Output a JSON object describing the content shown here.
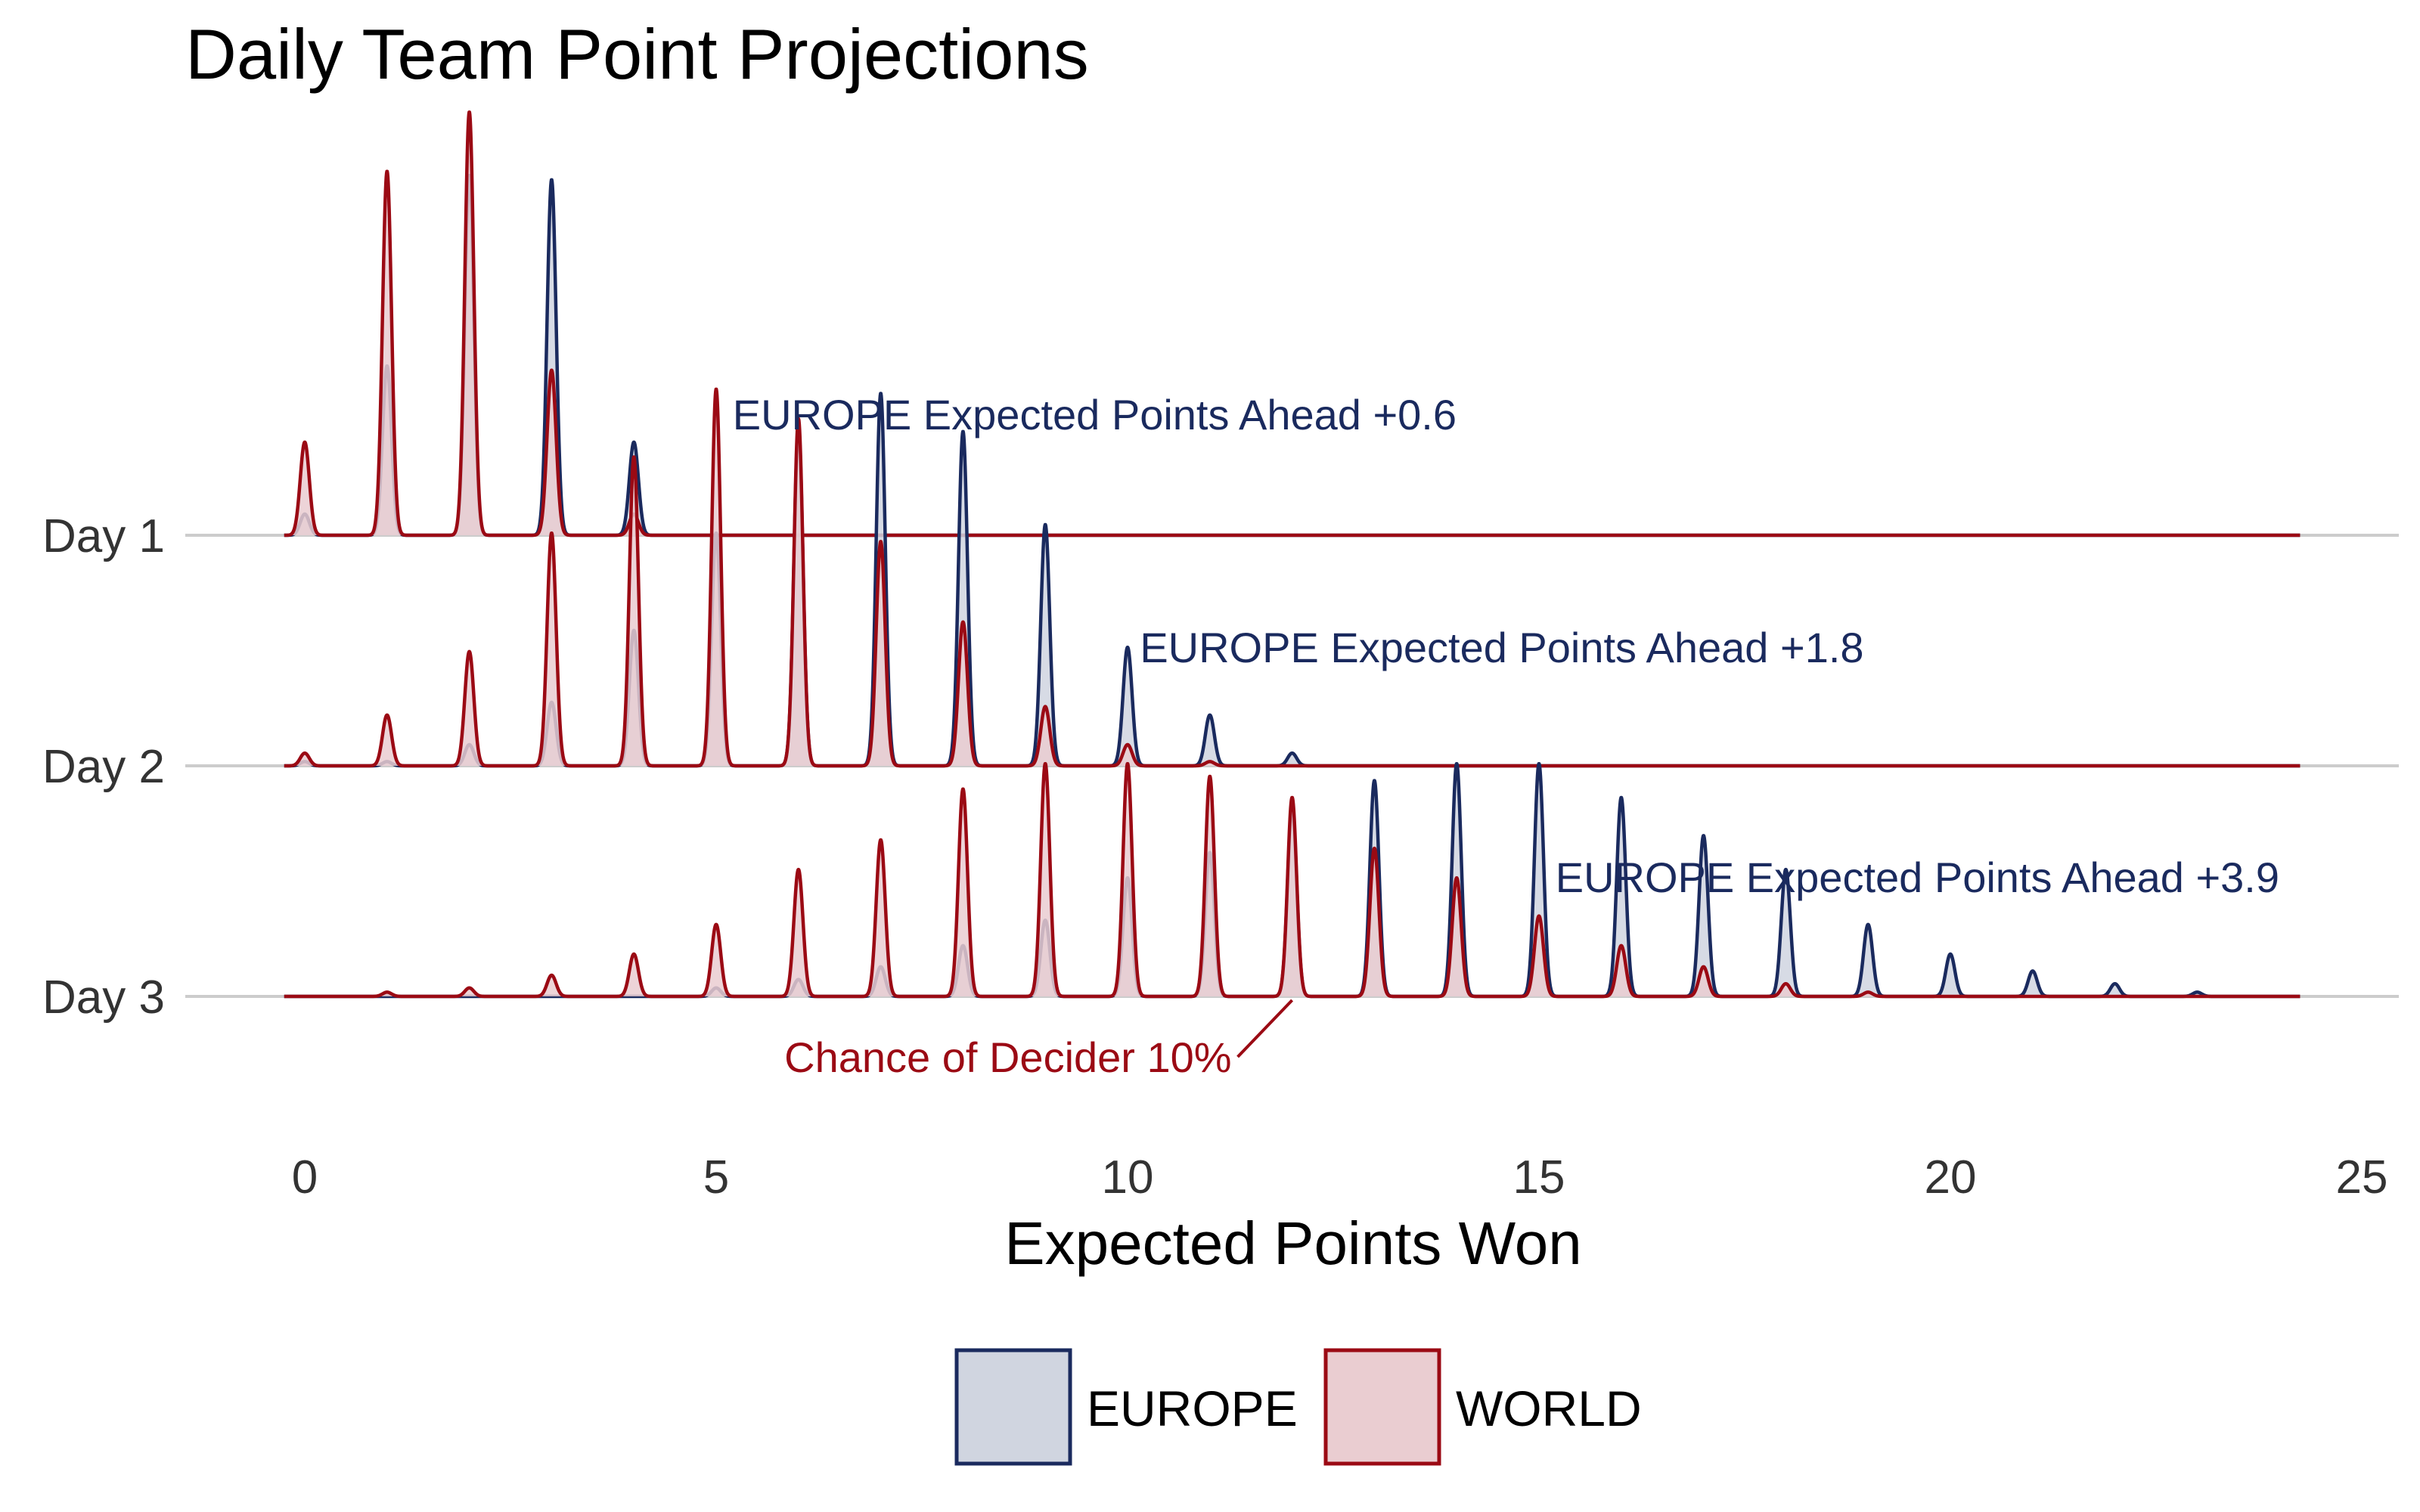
{
  "chart_data": {
    "type": "area",
    "subtype": "ridgeline",
    "title": "Daily Team Point Projections",
    "xlabel": "Expected Points Won",
    "ylabel": "",
    "xlim": [
      -0.6,
      25.5
    ],
    "x_ticks": [
      0,
      5,
      10,
      15,
      20,
      25
    ],
    "x_tick_labels": [
      "0",
      "5",
      "10",
      "15",
      "20",
      "25"
    ],
    "grid": false,
    "legend_position": "bottom",
    "colors": {
      "EUROPE": {
        "line": "#1a2a5e",
        "fill": "#d0d5e0"
      },
      "WORLD": {
        "line": "#9b0a14",
        "fill": "#eacdd1"
      },
      "baseline": "#cccccc"
    },
    "days": [
      {
        "label": "Day 1",
        "points": [
          0,
          1,
          2,
          3,
          4
        ],
        "series": [
          {
            "name": "EUROPE",
            "values": [
              0.05,
              0.4,
              0.85,
              0.84,
              0.22
            ]
          },
          {
            "name": "WORLD",
            "values": [
              0.22,
              0.86,
              1.0,
              0.39,
              0.05
            ]
          }
        ],
        "annotation": {
          "text": "EUROPE Expected Points Ahead +0.6",
          "x": 5.2,
          "color": "#1a2a5e"
        }
      },
      {
        "label": "Day 2",
        "points": [
          0,
          1,
          2,
          3,
          4,
          5,
          6,
          7,
          8,
          9,
          10,
          11,
          12
        ],
        "series": [
          {
            "name": "EUROPE",
            "values": [
              0.01,
              0.01,
              0.05,
              0.15,
              0.32,
              0.55,
              0.8,
              0.88,
              0.79,
              0.57,
              0.28,
              0.12,
              0.03
            ]
          },
          {
            "name": "WORLD",
            "values": [
              0.03,
              0.12,
              0.27,
              0.55,
              0.73,
              0.89,
              0.82,
              0.53,
              0.34,
              0.14,
              0.05,
              0.01,
              0.0
            ]
          }
        ],
        "annotation": {
          "text": "EUROPE Expected Points Ahead +1.8",
          "x": 10.15,
          "color": "#1a2a5e"
        }
      },
      {
        "label": "Day 3",
        "points": [
          0,
          1,
          2,
          3,
          4,
          5,
          6,
          7,
          8,
          9,
          10,
          11,
          12,
          13,
          14,
          15,
          16,
          17,
          18,
          19,
          20,
          21,
          22,
          23
        ],
        "series": [
          {
            "name": "EUROPE",
            "values": [
              0.0,
              0.0,
              0.0,
              0.0,
              0.0,
              0.02,
              0.04,
              0.07,
              0.12,
              0.18,
              0.28,
              0.34,
              0.45,
              0.51,
              0.55,
              0.55,
              0.47,
              0.38,
              0.3,
              0.17,
              0.1,
              0.06,
              0.03,
              0.01
            ]
          },
          {
            "name": "WORLD",
            "values": [
              0.0,
              0.01,
              0.02,
              0.05,
              0.1,
              0.17,
              0.3,
              0.37,
              0.49,
              0.55,
              0.55,
              0.52,
              0.47,
              0.35,
              0.28,
              0.19,
              0.12,
              0.07,
              0.03,
              0.01,
              0.0,
              0.0,
              0.0,
              0.0
            ]
          }
        ],
        "annotation": {
          "text": "EUROPE Expected Points Ahead +3.9",
          "x": 15.2,
          "color": "#1a2a5e"
        },
        "callout": {
          "text": "Chance of Decider 10%",
          "x": 12,
          "color": "#9b0a14"
        }
      }
    ],
    "legend": [
      {
        "name": "EUROPE"
      },
      {
        "name": "WORLD"
      }
    ]
  }
}
